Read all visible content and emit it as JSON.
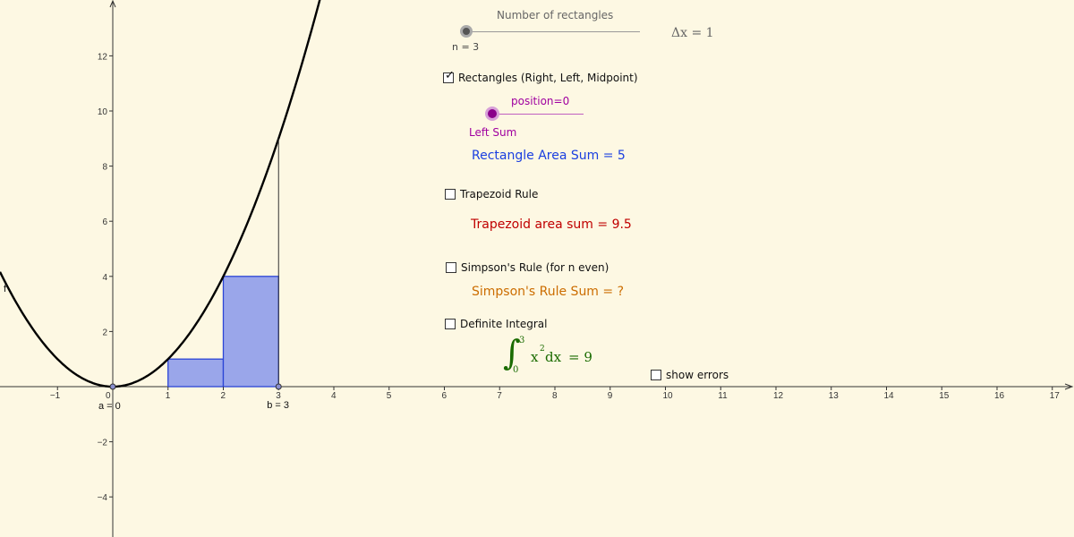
{
  "colors": {
    "background": "#fdf8e3",
    "axis": "#333333",
    "curve": "#000000",
    "rect_fill": "#9aa6ea",
    "rect_stroke": "#2b45d6",
    "rect_sum_text": "#1a3fe0",
    "trap_text": "#c00000",
    "simpson_text": "#cc6d00",
    "integral_text": "#1a6b00",
    "position_text": "#a000a0"
  },
  "slider_n": {
    "title": "Number of rectangles",
    "value_label": "n = 3",
    "n": 3
  },
  "delta_label": "Δx = 1",
  "checkbox_rectangles": {
    "label": "Rectangles (Right, Left, Midpoint)",
    "checked": true
  },
  "slider_position": {
    "label": "position=0",
    "mode_label": "Left Sum",
    "value": 0
  },
  "rect_sum_label": "Rectangle Area Sum = 5",
  "checkbox_trapezoid": {
    "label": "Trapezoid Rule",
    "checked": false
  },
  "trap_sum_label": "Trapezoid area sum = 9.5",
  "checkbox_simpson": {
    "label": "Simpson's Rule (for n even)",
    "checked": false
  },
  "simpson_label": "Simpson's Rule Sum = ?",
  "checkbox_definite": {
    "label": "Definite Integral",
    "checked": false
  },
  "integral": {
    "lower": "0",
    "upper": "3",
    "integrand": "x",
    "power": "2",
    "dx": "dx",
    "result": "= 9"
  },
  "checkbox_errors": {
    "label": "show errors",
    "checked": false
  },
  "point_a_label": "a = 0",
  "point_b_label": "b = 3",
  "function_label": "f",
  "x_ticks": [
    -1,
    0,
    1,
    2,
    3,
    4,
    5,
    6,
    7,
    8,
    9,
    10,
    11,
    12,
    13,
    14,
    15,
    16,
    17
  ],
  "y_ticks": [
    -4,
    -2,
    2,
    4,
    6,
    8,
    10,
    12
  ],
  "rectangles": [
    {
      "x0": 0,
      "x1": 1,
      "height": 0
    },
    {
      "x0": 1,
      "x1": 2,
      "height": 1
    },
    {
      "x0": 2,
      "x1": 3,
      "height": 4
    }
  ],
  "interval": {
    "a": 0,
    "b": 3
  }
}
